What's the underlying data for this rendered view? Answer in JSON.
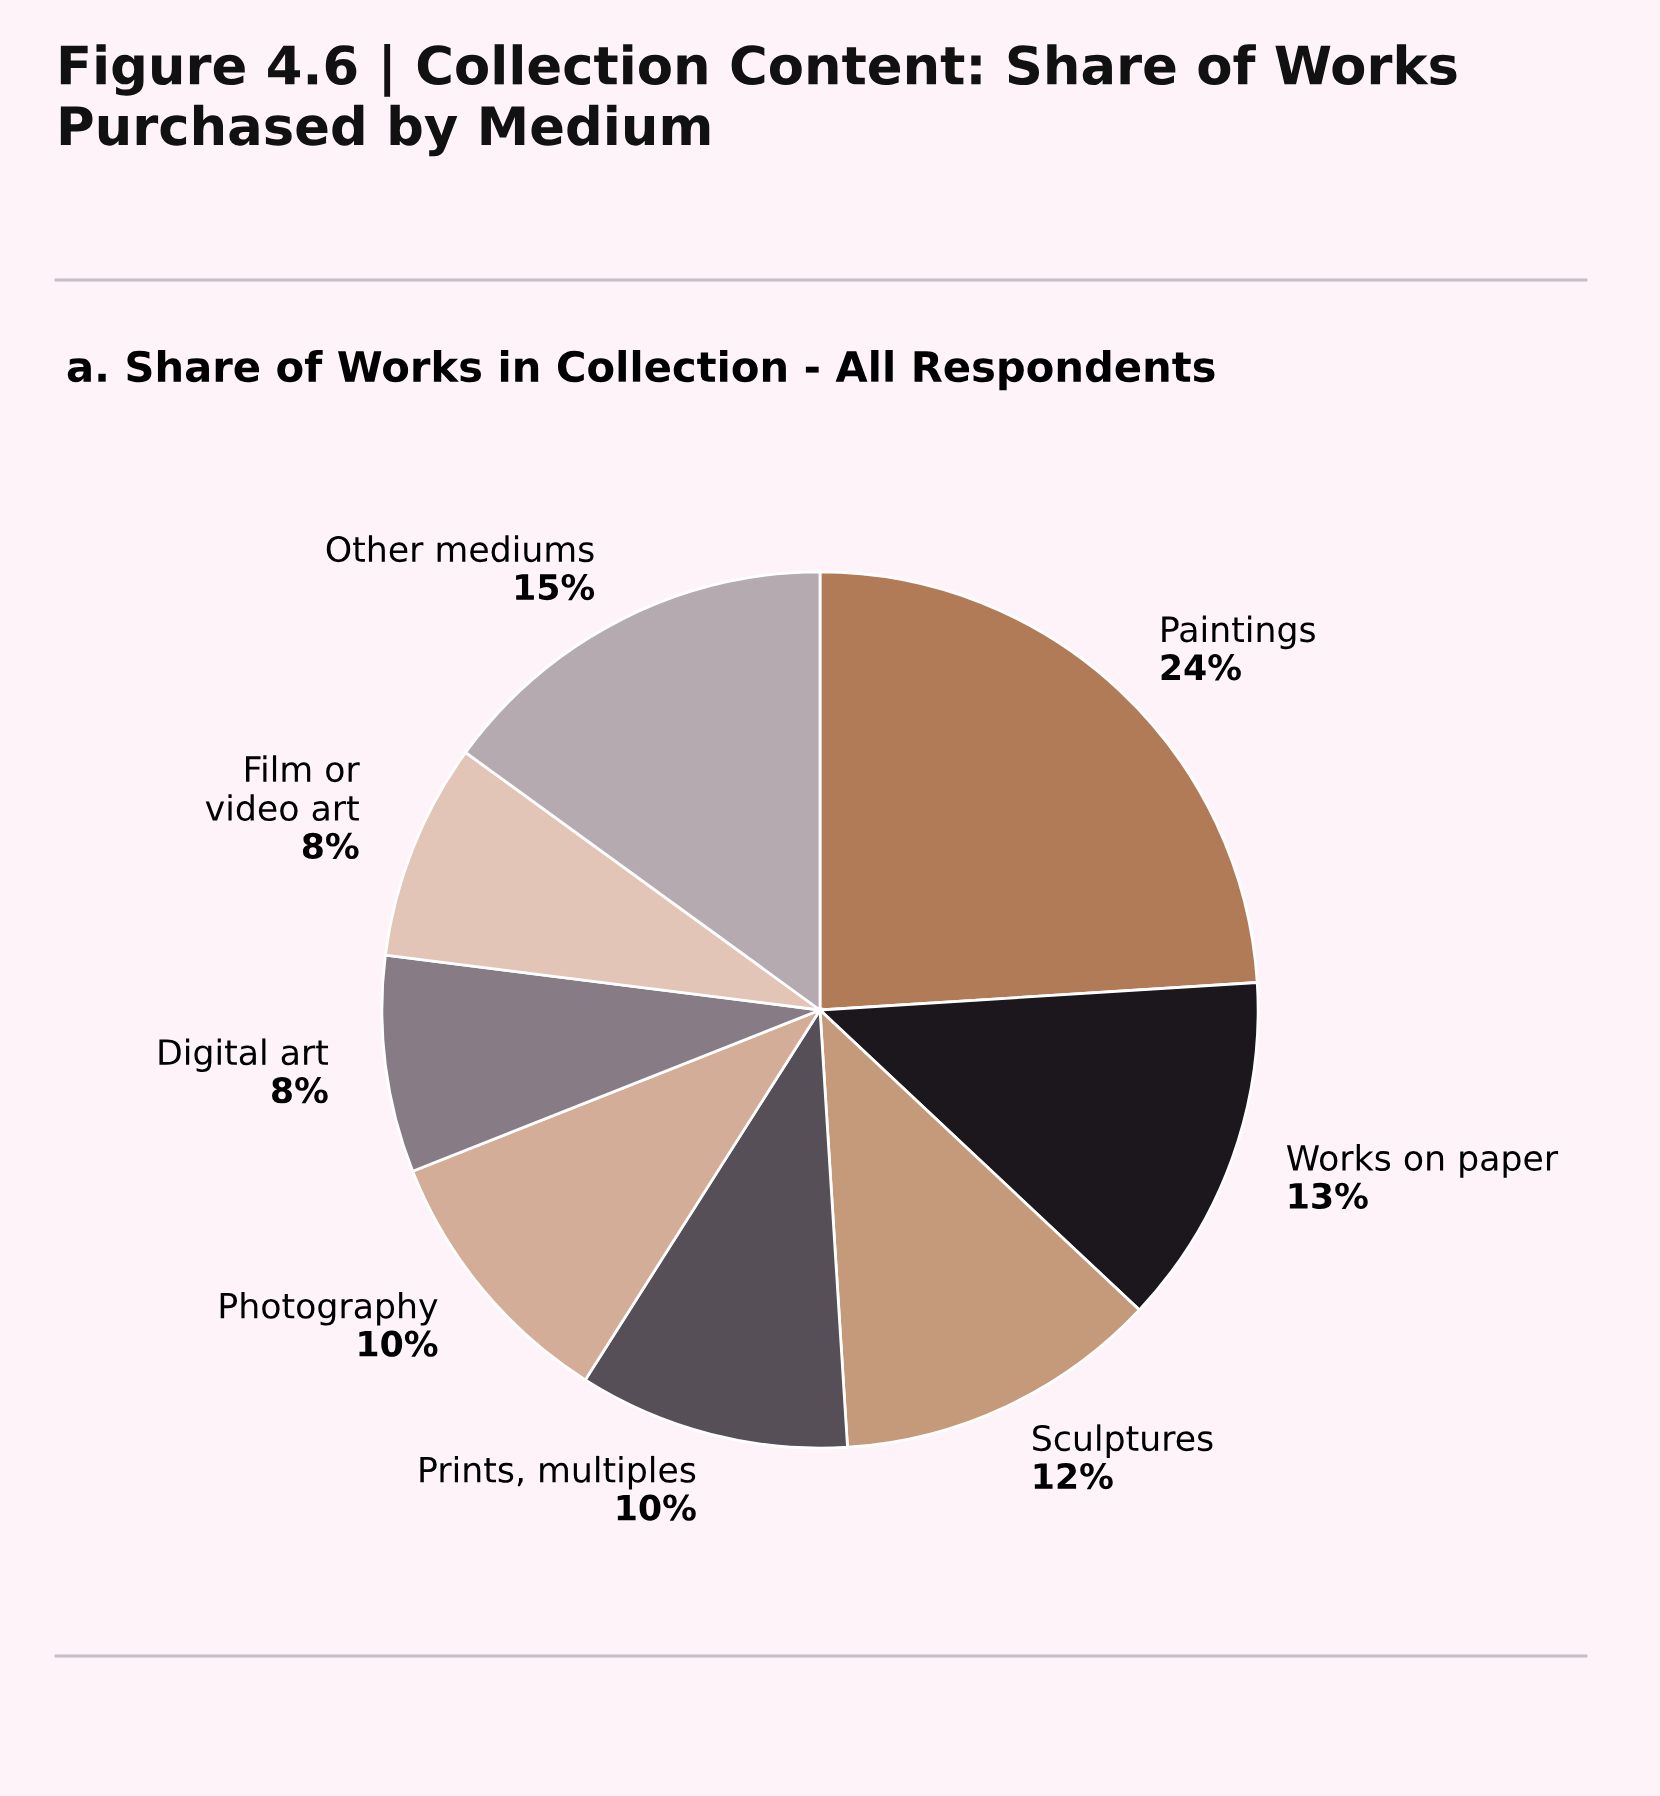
{
  "chart_data": {
    "type": "pie",
    "title": "Figure 4.6 | Collection Content: Share of Works Purchased by Medium",
    "subtitle": "a. Share of Works in Collection - All Respondents",
    "categories": [
      "Paintings",
      "Works on paper",
      "Sculptures",
      "Prints, multiples",
      "Photography",
      "Digital art",
      "Film or\nvideo art",
      "Other mediums"
    ],
    "values": [
      24,
      13,
      12,
      10,
      10,
      8,
      8,
      15
    ],
    "value_labels": [
      "24%",
      "13%",
      "12%",
      "10%",
      "10%",
      "8%",
      "8%",
      "15%"
    ],
    "colors": [
      "#b27b58",
      "#1c171c",
      "#c49a7a",
      "#564f57",
      "#d4ad98",
      "#877c85",
      "#e3c5b8",
      "#b5aab0"
    ],
    "legend": false
  }
}
